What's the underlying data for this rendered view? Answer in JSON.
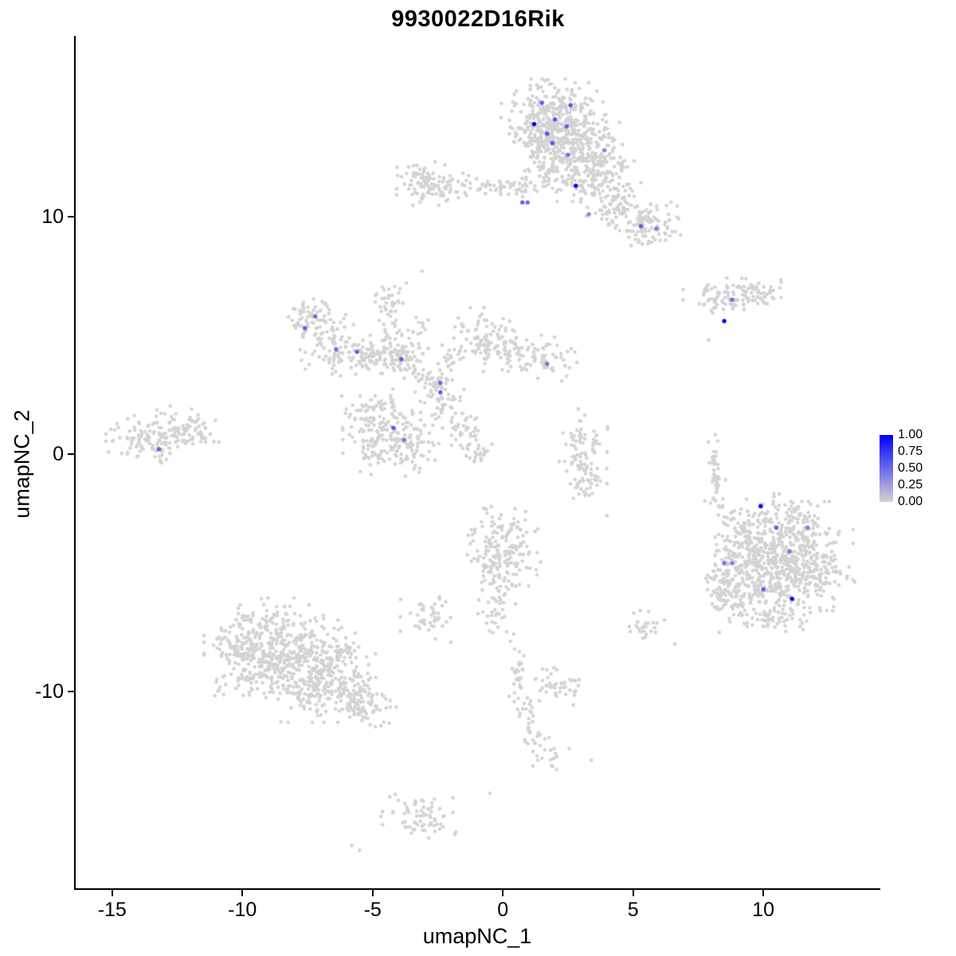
{
  "chart_data": {
    "type": "scatter",
    "title": "9930022D16Rik",
    "xlabel": "umapNC_1",
    "ylabel": "umapNC_2",
    "xlim": [
      -16.4,
      14.43
    ],
    "ylim": [
      -18.3,
      17.62
    ],
    "xtick_values": [
      -15,
      -10,
      -5,
      0,
      5,
      10
    ],
    "xtick_labels": [
      "-15",
      "-10",
      "-5",
      "0",
      "5",
      "10"
    ],
    "ytick_values": [
      -10,
      0,
      10
    ],
    "ytick_labels": [
      "-10",
      "0",
      "10"
    ],
    "grid": false,
    "legend": {
      "position": "right",
      "ticks": [
        "1.00",
        "0.75",
        "0.50",
        "0.25",
        "0.00"
      ],
      "values": [
        1,
        0.75,
        0.5,
        0.25,
        0
      ]
    },
    "colors": {
      "low": "#D3D3D3",
      "high": "#0000FF",
      "axis": "#000000",
      "background": "#FFFFFF"
    },
    "gray_clusters_format": "[center_x, center_y, sd_x, sd_y, n_points]",
    "gray_clusters": [
      [
        2.0,
        14.3,
        0.9,
        0.65,
        240
      ],
      [
        2.7,
        13.2,
        0.8,
        0.6,
        200
      ],
      [
        1.4,
        13.4,
        0.5,
        0.5,
        80
      ],
      [
        1.7,
        12.2,
        0.45,
        0.5,
        60
      ],
      [
        2.9,
        11.9,
        0.5,
        0.55,
        80
      ],
      [
        3.7,
        11.2,
        0.5,
        0.45,
        60
      ],
      [
        4.4,
        10.5,
        0.55,
        0.45,
        60
      ],
      [
        5.2,
        9.8,
        0.65,
        0.45,
        80
      ],
      [
        6.0,
        9.5,
        0.4,
        0.35,
        30
      ],
      [
        4.1,
        12.4,
        0.5,
        0.4,
        40
      ],
      [
        0.6,
        11.3,
        0.7,
        0.2,
        35
      ],
      [
        -0.4,
        11.3,
        0.5,
        0.18,
        20
      ],
      [
        -2.7,
        11.4,
        0.6,
        0.4,
        80
      ],
      [
        -3.4,
        11.7,
        0.3,
        0.3,
        20
      ],
      [
        -1.9,
        11.2,
        0.3,
        0.25,
        15
      ],
      [
        8.3,
        6.6,
        0.6,
        0.28,
        45
      ],
      [
        9.3,
        6.9,
        0.6,
        0.28,
        45
      ],
      [
        10.0,
        6.6,
        0.35,
        0.25,
        20
      ],
      [
        8.8,
        6.3,
        0.4,
        0.2,
        15
      ],
      [
        -7.3,
        5.7,
        0.55,
        0.4,
        65
      ],
      [
        -6.4,
        4.5,
        0.6,
        0.45,
        75
      ],
      [
        -5.4,
        4.1,
        0.55,
        0.35,
        55
      ],
      [
        -4.5,
        4.2,
        0.55,
        0.35,
        55
      ],
      [
        -3.7,
        4.0,
        0.45,
        0.35,
        45
      ],
      [
        -4.4,
        5.6,
        0.22,
        0.7,
        30
      ],
      [
        -4.2,
        6.6,
        0.3,
        0.3,
        15
      ],
      [
        -3.3,
        5.1,
        0.25,
        0.4,
        18
      ],
      [
        -2.8,
        3.0,
        0.45,
        0.45,
        45
      ],
      [
        -2.3,
        2.2,
        0.35,
        0.4,
        30
      ],
      [
        -1.7,
        1.4,
        0.3,
        0.45,
        25
      ],
      [
        -1.2,
        0.6,
        0.28,
        0.45,
        22
      ],
      [
        -0.9,
        -0.1,
        0.22,
        0.35,
        15
      ],
      [
        -4.3,
        0.9,
        0.8,
        0.8,
        150
      ],
      [
        -5.2,
        1.4,
        0.45,
        0.45,
        40
      ],
      [
        -3.5,
        0.3,
        0.45,
        0.4,
        35
      ],
      [
        -4.8,
        -0.1,
        0.35,
        0.3,
        20
      ],
      [
        -0.8,
        4.9,
        0.6,
        0.55,
        80
      ],
      [
        -0.1,
        4.4,
        0.45,
        0.4,
        35
      ],
      [
        0.8,
        4.2,
        0.5,
        0.35,
        30
      ],
      [
        1.8,
        4.0,
        0.55,
        0.4,
        40
      ],
      [
        -1.9,
        4.3,
        0.3,
        0.3,
        15
      ],
      [
        -13.4,
        0.7,
        0.8,
        0.5,
        120
      ],
      [
        -12.3,
        1.1,
        0.55,
        0.4,
        45
      ],
      [
        -11.6,
        0.9,
        0.3,
        0.3,
        15
      ],
      [
        3.1,
        0.6,
        0.4,
        0.45,
        40
      ],
      [
        3.2,
        -0.4,
        0.45,
        0.45,
        45
      ],
      [
        3.3,
        -1.3,
        0.35,
        0.35,
        25
      ],
      [
        8.1,
        -0.2,
        0.13,
        0.45,
        20
      ],
      [
        8.25,
        -1.2,
        0.13,
        0.45,
        20
      ],
      [
        8.1,
        -2.0,
        0.15,
        0.25,
        8
      ],
      [
        10.8,
        -4.3,
        1.15,
        1.0,
        380
      ],
      [
        11.9,
        -5.0,
        0.7,
        0.7,
        120
      ],
      [
        9.7,
        -5.4,
        0.8,
        0.8,
        150
      ],
      [
        9.0,
        -6.4,
        0.55,
        0.5,
        60
      ],
      [
        9.2,
        -3.4,
        0.5,
        0.55,
        55
      ],
      [
        8.6,
        -4.6,
        0.35,
        0.6,
        45
      ],
      [
        10.3,
        -2.6,
        0.65,
        0.4,
        55
      ],
      [
        11.5,
        -3.0,
        0.5,
        0.35,
        35
      ],
      [
        8.3,
        -5.6,
        0.18,
        0.6,
        20
      ],
      [
        10.5,
        -6.8,
        0.6,
        0.35,
        40
      ],
      [
        -0.1,
        -3.4,
        0.55,
        0.55,
        70
      ],
      [
        0.3,
        -4.3,
        0.55,
        0.55,
        70
      ],
      [
        -0.6,
        -4.5,
        0.4,
        0.4,
        35
      ],
      [
        0.1,
        -5.5,
        0.25,
        0.45,
        22
      ],
      [
        -0.3,
        -6.6,
        0.3,
        0.5,
        30
      ],
      [
        -2.9,
        -6.9,
        0.45,
        0.45,
        45
      ],
      [
        -9.4,
        -8.2,
        0.9,
        0.8,
        180
      ],
      [
        -8.1,
        -8.9,
        0.9,
        0.8,
        180
      ],
      [
        -6.8,
        -9.7,
        0.85,
        0.7,
        140
      ],
      [
        -5.7,
        -10.3,
        0.6,
        0.5,
        70
      ],
      [
        -9.9,
        -9.4,
        0.55,
        0.5,
        50
      ],
      [
        -8.8,
        -7.1,
        0.65,
        0.45,
        55
      ],
      [
        -7.1,
        -8.3,
        0.75,
        0.65,
        90
      ],
      [
        -5.0,
        -10.9,
        0.4,
        0.35,
        25
      ],
      [
        -6.2,
        -8.7,
        0.5,
        0.5,
        45
      ],
      [
        -10.3,
        -8.0,
        0.4,
        0.4,
        25
      ],
      [
        0.6,
        -9.2,
        0.18,
        0.7,
        30
      ],
      [
        1.9,
        -9.6,
        0.45,
        0.35,
        35
      ],
      [
        2.6,
        -10.0,
        0.25,
        0.25,
        10
      ],
      [
        0.9,
        -10.9,
        0.2,
        0.45,
        15
      ],
      [
        1.2,
        -11.9,
        0.25,
        0.5,
        18
      ],
      [
        1.8,
        -12.8,
        0.35,
        0.3,
        15
      ],
      [
        5.4,
        -7.4,
        0.35,
        0.35,
        25
      ],
      [
        -3.3,
        -15.1,
        0.6,
        0.4,
        55
      ],
      [
        -2.5,
        -15.7,
        0.35,
        0.25,
        18
      ]
    ],
    "gray_singletons": [
      [
        -3.1,
        7.7
      ],
      [
        -4.9,
        6.4
      ],
      [
        7.9,
        4.8
      ],
      [
        2.9,
        1.9
      ],
      [
        -10.9,
        0.5
      ],
      [
        -0.5,
        -14.3
      ],
      [
        -5.8,
        -16.5
      ],
      [
        -5.5,
        -16.7
      ],
      [
        3.4,
        -12.9
      ],
      [
        6.6,
        -8.0
      ],
      [
        4.0,
        -2.6
      ],
      [
        -1.4,
        10.9
      ]
    ],
    "expressing_cells_format": "[x, y, expression_0_to_1]",
    "expressing_cells": [
      [
        1.5,
        14.8,
        0.55
      ],
      [
        2.6,
        14.7,
        0.6
      ],
      [
        1.2,
        13.9,
        1.0
      ],
      [
        2.0,
        14.1,
        0.6
      ],
      [
        1.7,
        13.5,
        0.6
      ],
      [
        2.45,
        13.8,
        0.55
      ],
      [
        1.9,
        13.1,
        0.6
      ],
      [
        2.5,
        12.6,
        0.5
      ],
      [
        3.9,
        12.8,
        0.4
      ],
      [
        2.8,
        11.3,
        1.0
      ],
      [
        3.3,
        10.1,
        0.35
      ],
      [
        0.75,
        10.6,
        0.55
      ],
      [
        0.95,
        10.6,
        0.5
      ],
      [
        5.3,
        9.6,
        0.55
      ],
      [
        5.9,
        9.5,
        0.4
      ],
      [
        8.8,
        6.5,
        0.5
      ],
      [
        8.5,
        5.6,
        1.0
      ],
      [
        -7.6,
        5.3,
        0.55
      ],
      [
        -7.2,
        5.8,
        0.5
      ],
      [
        -6.4,
        4.4,
        0.5
      ],
      [
        -5.6,
        4.3,
        0.55
      ],
      [
        -3.9,
        4.0,
        0.55
      ],
      [
        1.7,
        3.8,
        0.45
      ],
      [
        -2.4,
        3.0,
        0.5
      ],
      [
        -2.4,
        2.6,
        0.55
      ],
      [
        -4.2,
        1.1,
        0.6
      ],
      [
        -3.8,
        0.6,
        0.45
      ],
      [
        -13.2,
        0.2,
        0.55
      ],
      [
        9.9,
        -2.2,
        1.0
      ],
      [
        10.5,
        -3.1,
        0.55
      ],
      [
        11.7,
        -3.1,
        0.4
      ],
      [
        11.0,
        -4.1,
        0.45
      ],
      [
        8.5,
        -4.6,
        0.45
      ],
      [
        8.8,
        -4.6,
        0.4
      ],
      [
        10.0,
        -5.7,
        0.55
      ],
      [
        11.1,
        -6.1,
        1.0
      ]
    ]
  }
}
